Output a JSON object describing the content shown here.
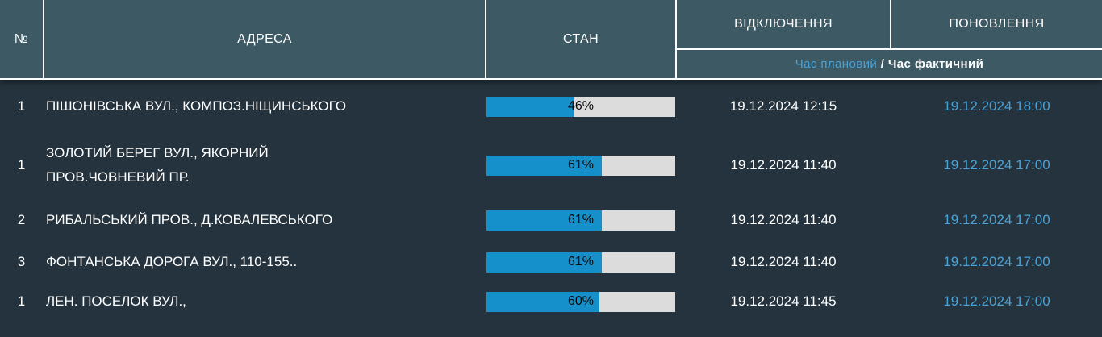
{
  "table": {
    "columns": {
      "number": "№",
      "address": "АДРЕСА",
      "state": "СТАН",
      "outage": "ВІДКЛЮЧЕННЯ",
      "restore": "ПОНОВЛЕННЯ"
    },
    "legend": {
      "planned": "Час плановий",
      "separator": " / ",
      "actual": "Час фактичний"
    },
    "rows": [
      {
        "number": "1",
        "address_lines": [
          "ПІШОНІВСЬКА ВУЛ., КОМПОЗ.НІЩИНСЬКОГО"
        ],
        "percent": 46,
        "percent_label": "46%",
        "outage_time": "19.12.2024 12:15",
        "restore_time": "19.12.2024 18:00"
      },
      {
        "number": "1",
        "address_lines": [
          "ЗОЛОТИЙ БЕРЕГ ВУЛ., ЯКОРНИЙ",
          "ПРОВ.ЧОВНЕВИЙ ПР."
        ],
        "percent": 61,
        "percent_label": "61%",
        "outage_time": "19.12.2024 11:40",
        "restore_time": "19.12.2024 17:00"
      },
      {
        "number": "2",
        "address_lines": [
          "РИБАЛЬСЬКИЙ ПРОВ., Д.КОВАЛЕВСЬКОГО"
        ],
        "percent": 61,
        "percent_label": "61%",
        "outage_time": "19.12.2024 11:40",
        "restore_time": "19.12.2024 17:00"
      },
      {
        "number": "3",
        "address_lines": [
          "ФОНТАНСЬКА ДОРОГА ВУЛ., 110-155.."
        ],
        "percent": 61,
        "percent_label": "61%",
        "outage_time": "19.12.2024 11:40",
        "restore_time": "19.12.2024 17:00"
      },
      {
        "number": "1",
        "address_lines": [
          "ЛЕН. ПОСЕЛОК ВУЛ.,"
        ],
        "percent": 60,
        "percent_label": "60%",
        "outage_time": "19.12.2024 11:45",
        "restore_time": "19.12.2024 17:00"
      }
    ],
    "colors": {
      "header_bg": "#3d5964",
      "body_bg": "#24333d",
      "accent_blue": "#4aa3d8",
      "bar_fill": "#1590cb",
      "bar_track": "#dcdcdc",
      "divider": "#fdfdfd"
    }
  }
}
